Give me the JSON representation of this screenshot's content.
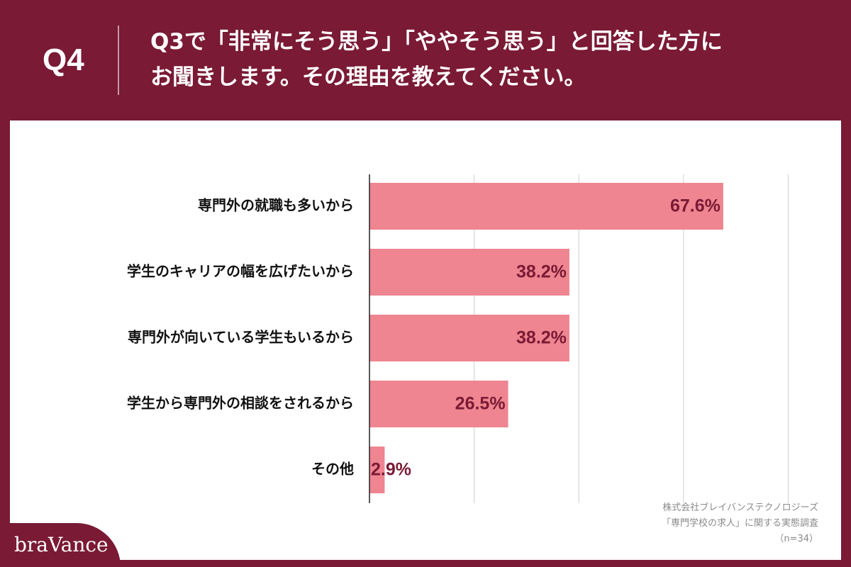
{
  "header": {
    "qnum": "Q4",
    "question_line1": "Q3で「非常にそう思う」「ややそう思う」と回答した方に",
    "question_line2": "お聞きします。その理由を教えてください。"
  },
  "source": {
    "line1": "株式会社ブレイバンステクノロジーズ",
    "line2": "「専門学校の求人」に関する実態調査",
    "line3": "（n=34）"
  },
  "logo": {
    "text": "braVance"
  },
  "colors": {
    "brand": "#7a1a35",
    "bar": "#ee8590",
    "label": "#7a1a35"
  },
  "chart_data": {
    "type": "bar",
    "orientation": "horizontal",
    "categories": [
      "専門外の就職も多いから",
      "学生のキャリアの幅を広げたいから",
      "専門外が向いている学生もいるから",
      "学生から専門外の相談をされるから",
      "その他"
    ],
    "values": [
      67.6,
      38.2,
      38.2,
      26.5,
      2.9
    ],
    "value_labels": [
      "67.6%",
      "38.2%",
      "38.2%",
      "26.5%",
      "2.9%"
    ],
    "xlim": [
      0,
      80
    ],
    "grid_step": 20,
    "grid": true
  }
}
